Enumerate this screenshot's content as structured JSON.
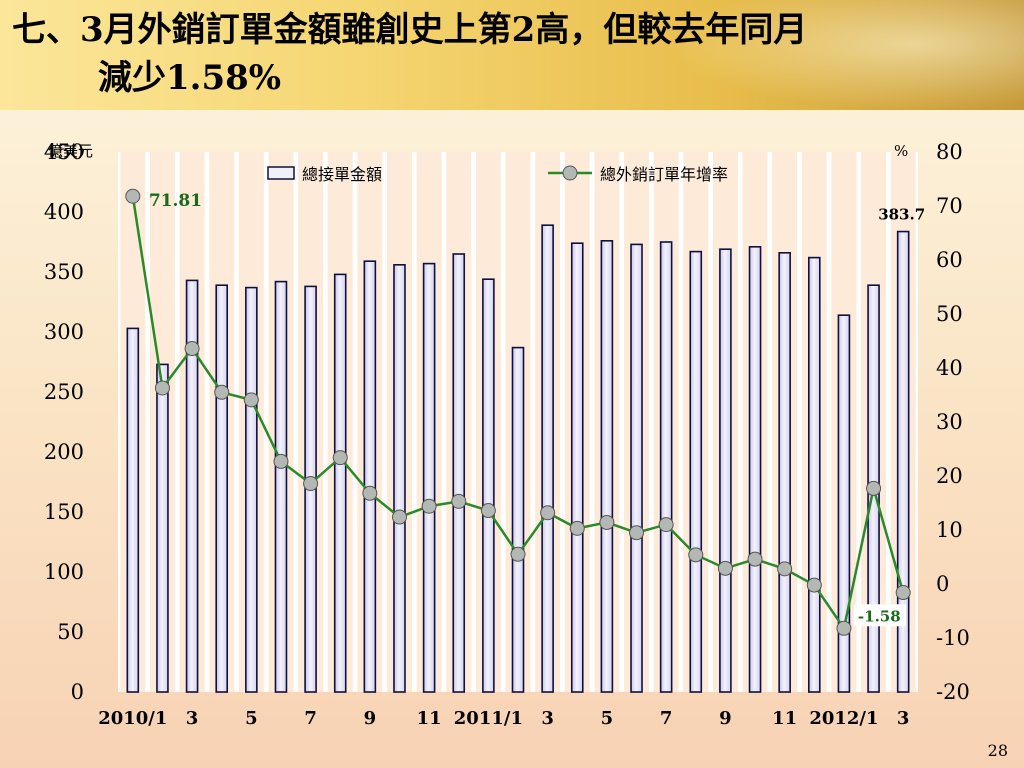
{
  "slide": {
    "title_line1": "七、3月外銷訂單金額雖創史上第2高，但較去年同月",
    "title_line2": "減少1.58%",
    "page_number": "28"
  },
  "colors": {
    "bar_fill": "#f4f2fb",
    "bar_stroke": "#101040",
    "line": "#2a8a2a",
    "marker": "#b4b8b4"
  },
  "chart_data": {
    "type": "bar+line",
    "left_unit": "億美元",
    "right_unit": "%",
    "x": [
      "2010/1",
      "2",
      "3",
      "4",
      "5",
      "6",
      "7",
      "8",
      "9",
      "10",
      "11",
      "12",
      "2011/1",
      "2",
      "3",
      "4",
      "5",
      "6",
      "7",
      "8",
      "9",
      "10",
      "11",
      "12",
      "2012/1",
      "2",
      "3"
    ],
    "x_tick_labels": [
      "2010/1",
      "",
      "3",
      "",
      "5",
      "",
      "7",
      "",
      "9",
      "",
      "11",
      "",
      "2011/1",
      "",
      "3",
      "",
      "5",
      "",
      "7",
      "",
      "9",
      "",
      "11",
      "",
      "2012/1",
      "",
      "3"
    ],
    "left_axis": {
      "min": 0,
      "max": 450,
      "ticks": [
        "0",
        "50",
        "100",
        "150",
        "200",
        "250",
        "300",
        "350",
        "400",
        "450"
      ]
    },
    "right_axis": {
      "min": -20,
      "max": 80,
      "ticks": [
        "-20",
        "-10",
        "0",
        "10",
        "20",
        "30",
        "40",
        "50",
        "60",
        "70",
        "80"
      ]
    },
    "series": [
      {
        "name": "總接單金額",
        "kind": "bar",
        "axis": "left",
        "values": [
          303,
          273,
          343,
          339,
          337,
          342,
          338,
          348,
          359,
          356,
          357,
          365,
          344,
          287,
          389,
          374,
          376,
          373,
          375,
          367,
          369,
          371,
          366,
          362,
          314,
          339,
          383.7
        ]
      },
      {
        "name": "總外銷訂單年增率",
        "kind": "line",
        "axis": "right",
        "values": [
          71.81,
          36.3,
          43.6,
          35.5,
          34.1,
          22.7,
          18.6,
          23.4,
          16.8,
          12.4,
          14.4,
          15.3,
          13.6,
          5.5,
          13.2,
          10.3,
          11.4,
          9.5,
          11.0,
          5.4,
          2.9,
          4.6,
          2.8,
          -0.2,
          -8.2,
          17.7,
          -1.58
        ]
      }
    ],
    "data_labels": {
      "peak": "71.81",
      "last_bar": "383.7",
      "last_rate": "-1.58"
    },
    "legend_position": "top"
  }
}
